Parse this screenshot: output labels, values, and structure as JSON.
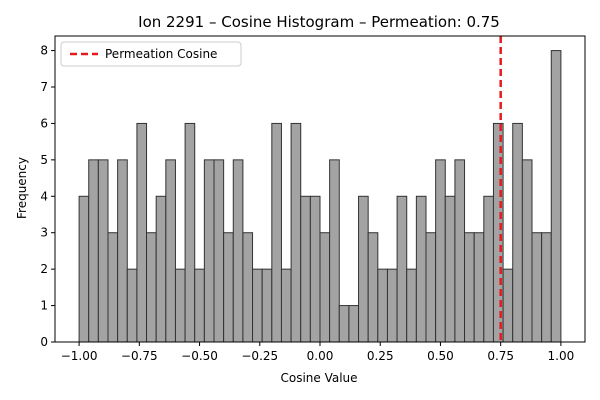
{
  "chart_data": {
    "type": "bar",
    "title": "Ion 2291 – Cosine Histogram – Permeation: 0.75",
    "xlabel": "Cosine Value",
    "ylabel": "Frequency",
    "xlim": [
      -1.1,
      1.1
    ],
    "ylim": [
      0,
      8.4
    ],
    "x_ticks": [
      -1.0,
      -0.75,
      -0.5,
      -0.25,
      0.0,
      0.25,
      0.5,
      0.75,
      1.0
    ],
    "x_tick_labels": [
      "−1.00",
      "−0.75",
      "−0.50",
      "−0.25",
      "0.00",
      "0.25",
      "0.50",
      "0.75",
      "1.00"
    ],
    "y_ticks": [
      0,
      1,
      2,
      3,
      4,
      5,
      6,
      7,
      8
    ],
    "y_tick_labels": [
      "0",
      "1",
      "2",
      "3",
      "4",
      "5",
      "6",
      "7",
      "8"
    ],
    "bin_edges_range": [
      -1.0,
      1.0
    ],
    "values": [
      4,
      5,
      5,
      3,
      5,
      2,
      6,
      3,
      4,
      5,
      2,
      6,
      2,
      5,
      5,
      3,
      5,
      3,
      2,
      2,
      6,
      2,
      6,
      4,
      4,
      3,
      5,
      1,
      1,
      4,
      3,
      2,
      2,
      4,
      2,
      4,
      3,
      5,
      4,
      5,
      3,
      3,
      4,
      6,
      2,
      6,
      5,
      3,
      3,
      8
    ],
    "bar_color": "#a3a3a3",
    "bar_edge_color": "#333333",
    "reference_line": {
      "x": 0.75,
      "color": "#e41a1c",
      "style": "dashed",
      "label": "Permeation Cosine"
    },
    "legend_position": "upper-left",
    "grid": false
  }
}
